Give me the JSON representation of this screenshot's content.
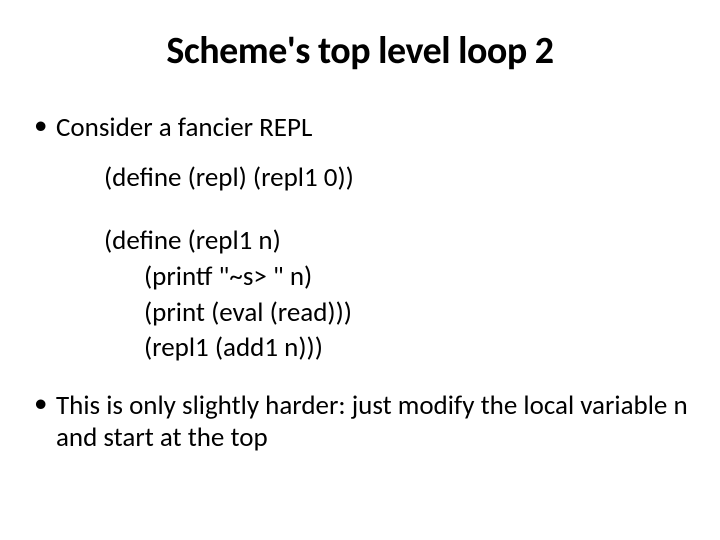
{
  "slide": {
    "title": "Scheme's top level loop 2",
    "title_fontsize": 38,
    "title_color": "#000000",
    "bullet1": "Consider a fancier REPL",
    "bullet2": "This is only slightly harder: just modify the local variable n and start at the top",
    "bullet_fontsize": 27,
    "bullet_color": "#000000",
    "code": {
      "fontsize": 27,
      "line1": "(define (repl) (repl1 0))",
      "line2": "(define (repl1 n)",
      "line3": "(printf \"~s> \" n)",
      "line4": "(print (eval (read)))",
      "line5": "(repl1 (add1 n)))"
    },
    "background_color": "#ffffff"
  }
}
